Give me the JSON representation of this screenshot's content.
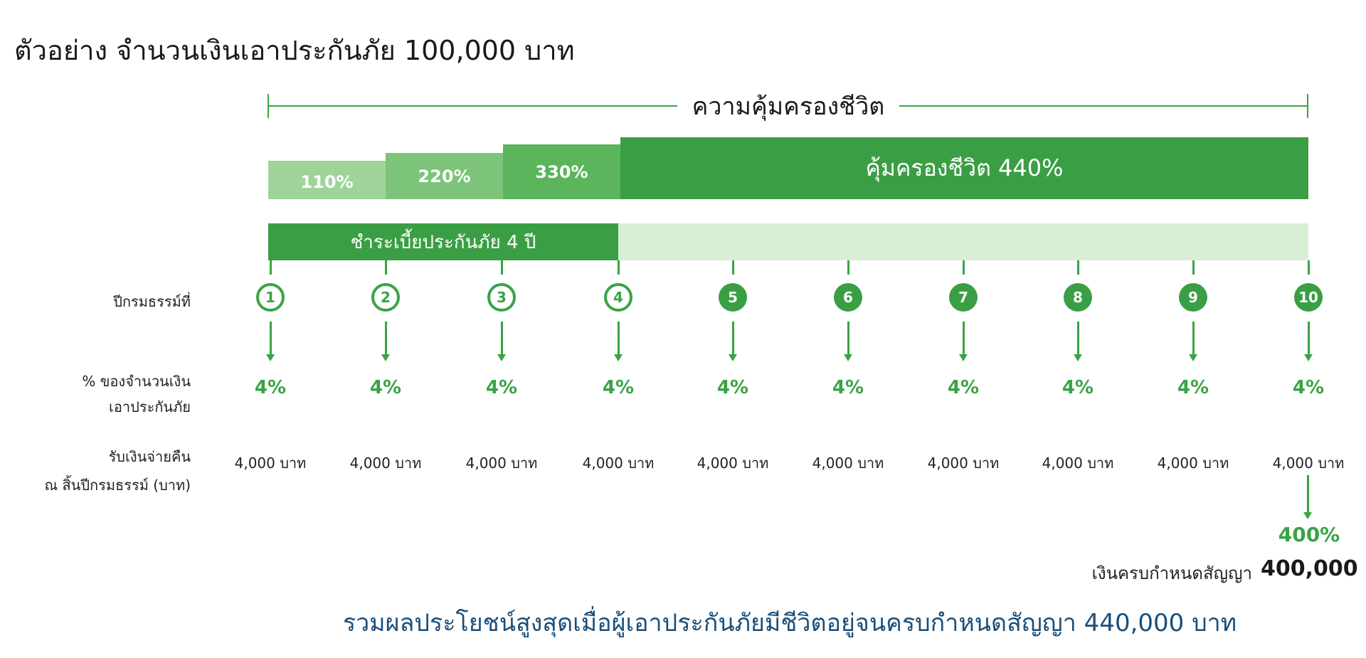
{
  "title": "ตัวอย่าง จำนวนเงินเอาประกันภัย 100,000 บาท",
  "coverage_label": "ความคุ้มครองชีวิต",
  "tiers": [
    "110%",
    "220%",
    "330%",
    "คุ้มครองชีวิต 440%"
  ],
  "payment_label": "ชำระเบี้ยประกันภัย 4 ปี",
  "row_labels": {
    "year": "ปีกรมธรรม์ที่",
    "percent_line1": "% ของจำนวนเงิน",
    "percent_line2": "เอาประกันภัย",
    "refund_line1": "รับเงินจ่ายคืน",
    "refund_line2": "ณ สิ้นปีกรมธรรม์ (บาท)"
  },
  "years": [
    {
      "num": "1",
      "pct": "4%",
      "amount": "4,000 บาท"
    },
    {
      "num": "2",
      "pct": "4%",
      "amount": "4,000 บาท"
    },
    {
      "num": "3",
      "pct": "4%",
      "amount": "4,000 บาท"
    },
    {
      "num": "4",
      "pct": "4%",
      "amount": "4,000 บาท"
    },
    {
      "num": "5",
      "pct": "4%",
      "amount": "4,000 บาท"
    },
    {
      "num": "6",
      "pct": "4%",
      "amount": "4,000 บาท"
    },
    {
      "num": "7",
      "pct": "4%",
      "amount": "4,000 บาท"
    },
    {
      "num": "8",
      "pct": "4%",
      "amount": "4,000 บาท"
    },
    {
      "num": "9",
      "pct": "4%",
      "amount": "4,000 บาท"
    },
    {
      "num": "10",
      "pct": "4%",
      "amount": "4,000 บาท"
    }
  ],
  "paid_years": 4,
  "maturity_pct": "400%",
  "maturity_label": "เงินครบกำหนดสัญญา",
  "maturity_value": "400,000",
  "summary": "รวมผลประโยชน์สูงสุดเมื่อผู้เอาประกันภัยมีชีวิตอยู่จนครบกำหนดสัญญา  440,000 บาท",
  "colors": {
    "primary": "#3a9f44",
    "light": "#d9efd5",
    "text_blue": "#1b4f7a"
  }
}
